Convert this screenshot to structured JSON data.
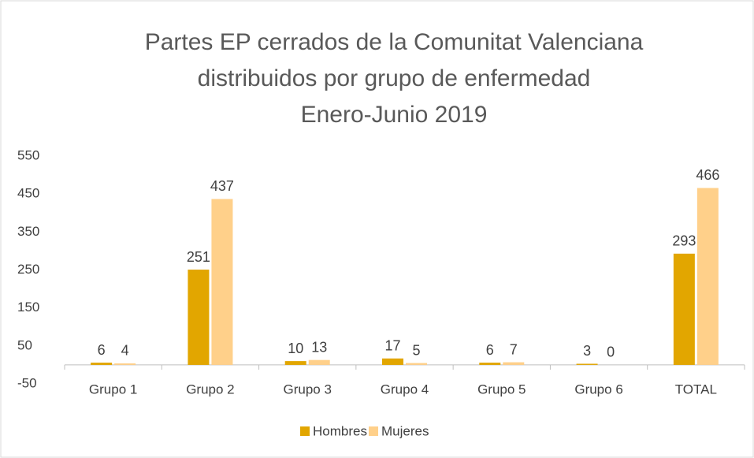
{
  "chart_data": {
    "type": "bar",
    "title": [
      "Partes EP cerrados de la Comunitat Valenciana",
      "distribuidos por grupo de enfermedad",
      "Enero-Junio 2019"
    ],
    "categories": [
      "Grupo 1",
      "Grupo 2",
      "Grupo 3",
      "Grupo 4",
      "Grupo 5",
      "Grupo 6",
      "TOTAL"
    ],
    "series": [
      {
        "name": "Hombres",
        "color": "#e2a600",
        "values": [
          6,
          251,
          10,
          17,
          6,
          3,
          293
        ]
      },
      {
        "name": "Mujeres",
        "color": "#ffd08a",
        "values": [
          4,
          437,
          13,
          5,
          7,
          0,
          466
        ]
      }
    ],
    "ylim": [
      -50,
      550
    ],
    "yticks": [
      -50,
      50,
      150,
      250,
      350,
      450,
      550
    ],
    "grid": false,
    "legend": "bottom"
  }
}
